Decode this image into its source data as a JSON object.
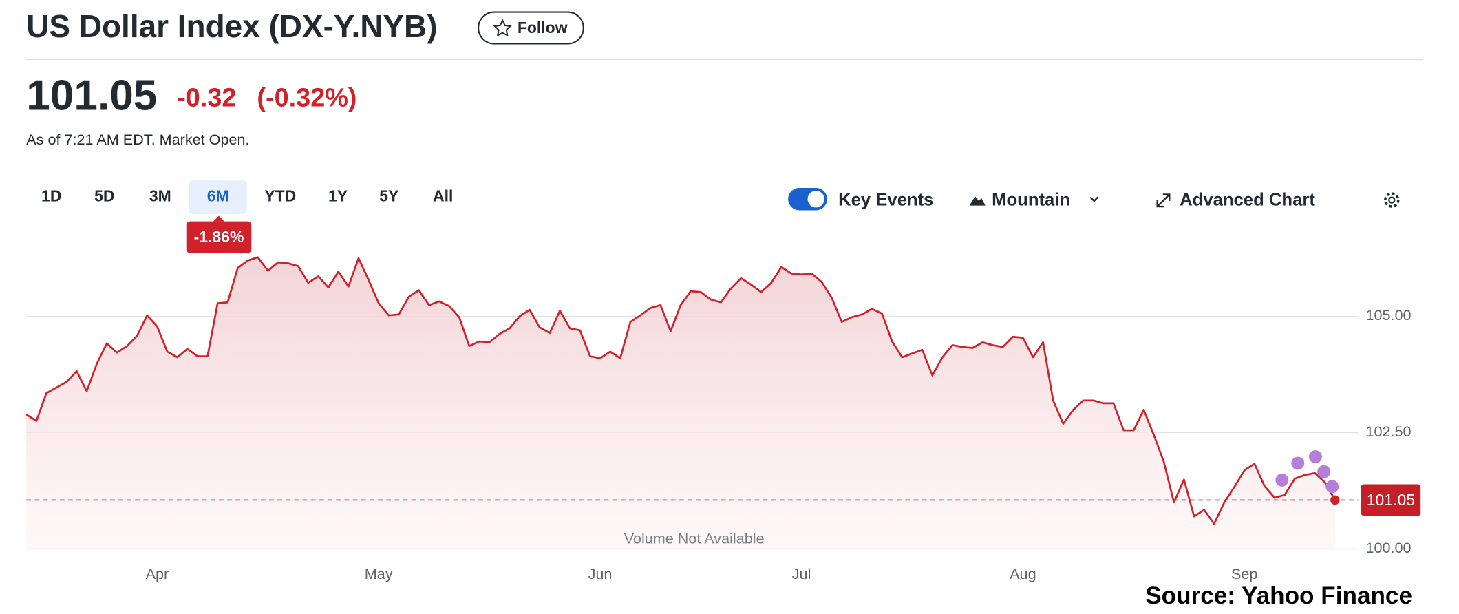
{
  "header": {
    "title": "US Dollar Index (DX-Y.NYB)",
    "follow": "Follow",
    "price": "101.05",
    "change": "-0.32",
    "change_pct": "(-0.32%)",
    "as_of": "As of 7:21 AM EDT. Market Open."
  },
  "ranges": {
    "buttons": [
      "1D",
      "5D",
      "3M",
      "6M",
      "YTD",
      "1Y",
      "5Y",
      "All"
    ],
    "selected": "6M",
    "period_change": "-1.86%"
  },
  "toolbar": {
    "key_events": "Key Events",
    "mountain": "Mountain",
    "advanced_chart": "Advanced Chart"
  },
  "chart_data": {
    "type": "area",
    "color": "#d0222a",
    "categories": [
      null,
      null,
      null,
      null,
      null,
      null,
      null,
      null,
      null,
      null,
      null,
      null,
      null,
      "Apr",
      null,
      null,
      null,
      null,
      null,
      null,
      null,
      null,
      null,
      null,
      null,
      null,
      null,
      null,
      null,
      null,
      null,
      null,
      null,
      null,
      null,
      "May",
      null,
      null,
      null,
      null,
      null,
      null,
      null,
      null,
      null,
      null,
      null,
      null,
      null,
      null,
      null,
      null,
      null,
      null,
      null,
      null,
      null,
      "Jun",
      null,
      null,
      null,
      null,
      null,
      null,
      null,
      null,
      null,
      null,
      null,
      null,
      null,
      null,
      null,
      null,
      null,
      null,
      null,
      "Jul",
      null,
      null,
      null,
      null,
      null,
      null,
      null,
      null,
      null,
      null,
      null,
      null,
      null,
      null,
      null,
      null,
      null,
      null,
      null,
      null,
      null,
      "Aug",
      null,
      null,
      null,
      null,
      null,
      null,
      null,
      null,
      null,
      null,
      null,
      null,
      null,
      null,
      null,
      null,
      null,
      null,
      null,
      null,
      null,
      "Sep",
      null,
      null,
      null,
      null,
      null,
      null,
      null,
      null,
      null
    ],
    "values": [
      102.89,
      102.75,
      103.35,
      103.47,
      103.59,
      103.82,
      103.39,
      103.98,
      104.42,
      104.22,
      104.36,
      104.58,
      105.02,
      104.78,
      104.24,
      104.12,
      104.3,
      104.14,
      104.14,
      105.28,
      105.3,
      106.04,
      106.2,
      106.27,
      105.98,
      106.16,
      106.14,
      106.08,
      105.72,
      105.86,
      105.62,
      105.96,
      105.64,
      106.25,
      105.78,
      105.28,
      105.02,
      105.04,
      105.42,
      105.56,
      105.24,
      105.32,
      105.22,
      104.98,
      104.36,
      104.46,
      104.44,
      104.62,
      104.74,
      105.0,
      105.14,
      104.76,
      104.64,
      105.12,
      104.74,
      104.7,
      104.14,
      104.1,
      104.24,
      104.1,
      104.88,
      105.02,
      105.18,
      105.24,
      104.68,
      105.24,
      105.54,
      105.52,
      105.36,
      105.3,
      105.6,
      105.82,
      105.68,
      105.52,
      105.72,
      106.06,
      105.92,
      105.9,
      105.92,
      105.74,
      105.4,
      104.88,
      104.98,
      105.04,
      105.16,
      105.06,
      104.46,
      104.12,
      104.2,
      104.28,
      103.73,
      104.12,
      104.38,
      104.34,
      104.32,
      104.44,
      104.38,
      104.34,
      104.56,
      104.54,
      104.12,
      104.44,
      103.19,
      102.69,
      102.99,
      103.19,
      103.19,
      103.13,
      103.13,
      102.55,
      102.55,
      102.99,
      102.45,
      101.87,
      101.0,
      101.49,
      100.7,
      100.84,
      100.54,
      101.0,
      101.33,
      101.69,
      101.83,
      101.35,
      101.1,
      101.16,
      101.51,
      101.59,
      101.63,
      101.43,
      101.05
    ],
    "ylim": [
      100,
      106.4
    ],
    "yticks": [
      {
        "value": 100,
        "label": "100.00"
      },
      {
        "value": 102.5,
        "label": "102.50"
      },
      {
        "value": 105,
        "label": "105.00"
      }
    ],
    "grid": true,
    "reference_line": 101.05,
    "annotation": "Volume Not Available",
    "source": "Source: Yahoo Finance"
  }
}
